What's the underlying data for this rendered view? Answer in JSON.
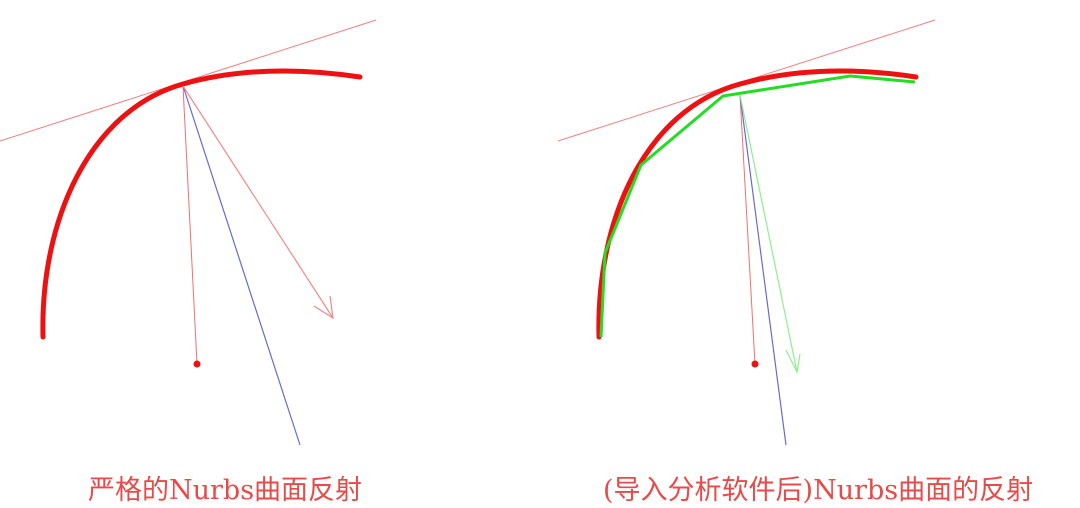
{
  "colors": {
    "curve": "#ee1111",
    "tangent": "#f08080",
    "normal": "#f07070",
    "incident": "#6a6ad0",
    "reflection_exact": "#f08a8a",
    "polyline": "#22dd22",
    "reflection_approx": "#90ee90",
    "caption": "#e84a4a"
  },
  "panels": [
    {
      "caption": "严格的Nurbs曲面反射"
    },
    {
      "caption": "(导入分析软件后)Nurbs曲面的反射"
    }
  ]
}
